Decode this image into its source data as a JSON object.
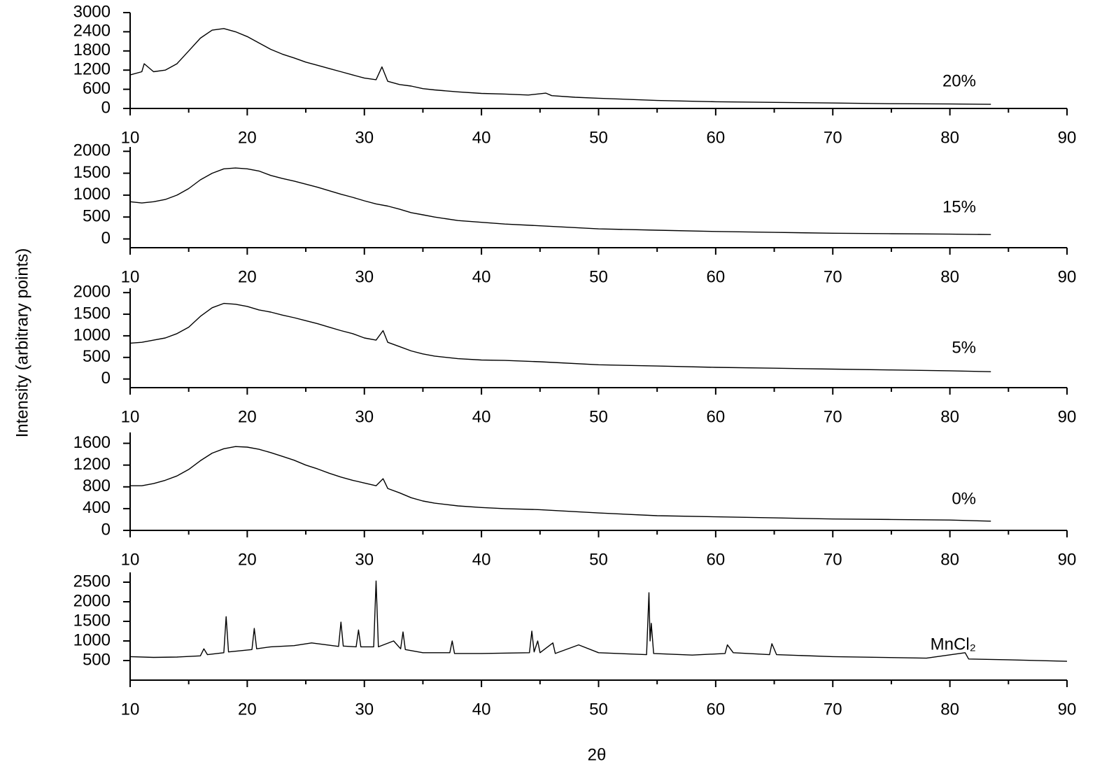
{
  "ylabel": "Intensity (arbitrary points)",
  "xlabel": "2θ",
  "chart_data": [
    {
      "type": "line",
      "annotation": "20%",
      "color": "#000000",
      "xlim": [
        10,
        90
      ],
      "xticks": [
        10,
        20,
        30,
        40,
        50,
        60,
        70,
        80,
        90
      ],
      "x_minor_ticks": [
        15,
        25,
        35,
        45,
        55,
        65,
        75,
        85
      ],
      "ylim": [
        0,
        3000
      ],
      "yticks": [
        0,
        600,
        1200,
        1800,
        2400,
        3000
      ],
      "x": [
        10,
        11,
        11.2,
        12,
        13,
        14,
        15,
        16,
        17,
        18,
        19,
        20,
        21,
        22,
        23,
        24,
        25,
        26,
        27,
        28,
        29,
        30,
        31,
        31.5,
        32,
        33,
        34,
        35,
        36,
        38,
        40,
        42,
        44,
        45.5,
        46,
        48,
        50,
        55,
        60,
        65,
        70,
        75,
        80,
        83.5
      ],
      "values": [
        1050,
        1150,
        1400,
        1150,
        1200,
        1400,
        1800,
        2200,
        2450,
        2500,
        2400,
        2250,
        2050,
        1850,
        1700,
        1580,
        1450,
        1350,
        1250,
        1150,
        1050,
        950,
        900,
        1300,
        850,
        750,
        700,
        620,
        580,
        520,
        470,
        450,
        420,
        480,
        400,
        350,
        320,
        250,
        210,
        190,
        170,
        150,
        140,
        130
      ]
    },
    {
      "type": "line",
      "annotation": "15%",
      "color": "#000000",
      "xlim": [
        10,
        90
      ],
      "xticks": [
        10,
        20,
        30,
        40,
        50,
        60,
        70,
        80,
        90
      ],
      "x_minor_ticks": [
        15,
        25,
        35,
        45,
        55,
        65,
        75,
        85
      ],
      "ylim": [
        -200,
        2100
      ],
      "yticks": [
        0,
        500,
        1000,
        1500,
        2000
      ],
      "x": [
        10,
        11,
        12,
        13,
        14,
        15,
        16,
        17,
        18,
        19,
        20,
        21,
        22,
        23,
        24,
        25,
        26,
        27,
        28,
        29,
        30,
        31,
        32,
        33,
        34,
        35,
        36,
        38,
        40,
        42,
        45,
        50,
        55,
        60,
        65,
        70,
        75,
        80,
        83.5
      ],
      "values": [
        850,
        820,
        850,
        900,
        1000,
        1150,
        1350,
        1500,
        1600,
        1620,
        1600,
        1550,
        1450,
        1380,
        1320,
        1250,
        1180,
        1100,
        1020,
        950,
        870,
        800,
        750,
        680,
        600,
        550,
        500,
        420,
        380,
        340,
        300,
        230,
        200,
        170,
        150,
        130,
        120,
        110,
        100
      ]
    },
    {
      "type": "line",
      "annotation": "5%",
      "color": "#000000",
      "xlim": [
        10,
        90
      ],
      "xticks": [
        10,
        20,
        30,
        40,
        50,
        60,
        70,
        80,
        90
      ],
      "x_minor_ticks": [
        15,
        25,
        35,
        45,
        55,
        65,
        75,
        85
      ],
      "ylim": [
        -200,
        2100
      ],
      "yticks": [
        0,
        500,
        1000,
        1500,
        2000
      ],
      "x": [
        10,
        11,
        12,
        13,
        14,
        15,
        16,
        17,
        18,
        19,
        20,
        21,
        22,
        23,
        24,
        25,
        26,
        27,
        28,
        29,
        30,
        31,
        31.6,
        32,
        33,
        34,
        35,
        36,
        38,
        40,
        42,
        45,
        50,
        55,
        60,
        65,
        70,
        75,
        80,
        83.5
      ],
      "values": [
        830,
        850,
        900,
        950,
        1050,
        1200,
        1450,
        1650,
        1750,
        1730,
        1680,
        1600,
        1550,
        1480,
        1420,
        1350,
        1280,
        1200,
        1120,
        1050,
        950,
        900,
        1120,
        850,
        750,
        650,
        580,
        530,
        470,
        440,
        430,
        400,
        330,
        300,
        270,
        250,
        230,
        210,
        190,
        170
      ]
    },
    {
      "type": "line",
      "annotation": "0%",
      "color": "#000000",
      "xlim": [
        10,
        90
      ],
      "xticks": [
        10,
        20,
        30,
        40,
        50,
        60,
        70,
        80,
        90
      ],
      "x_minor_ticks": [
        15,
        25,
        35,
        45,
        55,
        65,
        75,
        85
      ],
      "ylim": [
        0,
        1800
      ],
      "yticks": [
        0,
        400,
        800,
        1200,
        1600
      ],
      "x": [
        10,
        11,
        12,
        13,
        14,
        15,
        16,
        17,
        18,
        19,
        20,
        21,
        22,
        23,
        24,
        25,
        26,
        27,
        28,
        29,
        30,
        31,
        31.6,
        32,
        33,
        34,
        35,
        36,
        38,
        40,
        42,
        45,
        50,
        55,
        60,
        65,
        70,
        75,
        80,
        83.5
      ],
      "values": [
        820,
        820,
        860,
        920,
        1000,
        1120,
        1280,
        1420,
        1500,
        1540,
        1530,
        1490,
        1430,
        1360,
        1290,
        1200,
        1130,
        1050,
        980,
        920,
        870,
        820,
        950,
        770,
        690,
        600,
        540,
        500,
        450,
        420,
        400,
        380,
        320,
        270,
        250,
        230,
        210,
        200,
        190,
        170
      ]
    },
    {
      "type": "line",
      "annotation": "MnCl₂",
      "color": "#000000",
      "xlim": [
        10,
        90
      ],
      "xticks": [
        10,
        20,
        30,
        40,
        50,
        60,
        70,
        80,
        90
      ],
      "x_minor_ticks": [
        15,
        25,
        35,
        45,
        55,
        65,
        75,
        85
      ],
      "ylim": [
        0,
        2750
      ],
      "yticks": [
        500,
        1000,
        1500,
        2000,
        2500
      ],
      "x": [
        10,
        12,
        14,
        16,
        16.3,
        16.6,
        18,
        18.2,
        18.4,
        20.4,
        20.6,
        20.8,
        22,
        24,
        25.5,
        27.8,
        28,
        28.2,
        29.3,
        29.5,
        29.7,
        30.8,
        31,
        31.2,
        32.5,
        33.1,
        33.3,
        33.5,
        35,
        37.3,
        37.5,
        37.7,
        40,
        44.1,
        44.3,
        44.5,
        44.8,
        45,
        46.1,
        46.3,
        48.3,
        50,
        54.1,
        54.3,
        54.4,
        54.5,
        54.7,
        58,
        60.8,
        61,
        61.5,
        64.6,
        64.8,
        65.2,
        70,
        78,
        81.3,
        81.6,
        85,
        90
      ],
      "values": [
        600,
        580,
        590,
        620,
        800,
        650,
        700,
        1620,
        720,
        780,
        1320,
        800,
        850,
        880,
        950,
        860,
        1480,
        870,
        850,
        1280,
        850,
        850,
        2530,
        850,
        1000,
        800,
        1230,
        780,
        700,
        700,
        1000,
        680,
        680,
        700,
        1250,
        720,
        1000,
        700,
        950,
        680,
        900,
        700,
        650,
        2230,
        1000,
        1450,
        680,
        640,
        680,
        900,
        700,
        650,
        930,
        650,
        600,
        560,
        700,
        540,
        520,
        480
      ]
    }
  ]
}
